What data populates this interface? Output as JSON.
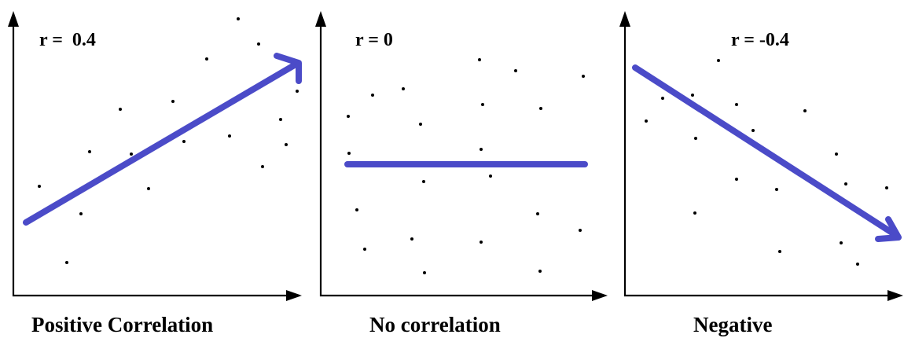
{
  "chart_data": [
    {
      "type": "scatter",
      "correlation_label": "r =  0.4",
      "caption": "Positive Correlation",
      "trend": "increasing",
      "grid": false,
      "colors": {
        "points": "#000000",
        "trend_line": "#4b4bc8",
        "axes": "#000000"
      },
      "points": [
        [
          50,
          237
        ],
        [
          85,
          334
        ],
        [
          103,
          272
        ],
        [
          114,
          193
        ],
        [
          153,
          139
        ],
        [
          167,
          196
        ],
        [
          189,
          240
        ],
        [
          220,
          129
        ],
        [
          234,
          180
        ],
        [
          263,
          75
        ],
        [
          292,
          173
        ],
        [
          303,
          24
        ],
        [
          329,
          56
        ],
        [
          334,
          212
        ],
        [
          357,
          152
        ],
        [
          364,
          184
        ],
        [
          378,
          116
        ]
      ]
    },
    {
      "type": "scatter",
      "correlation_label": "r = 0",
      "caption": "No correlation",
      "trend": "flat",
      "grid": false,
      "colors": {
        "points": "#000000",
        "trend_line": "#4b4bc8",
        "axes": "#000000"
      },
      "points": [
        [
          443,
          148
        ],
        [
          444,
          195
        ],
        [
          454,
          267
        ],
        [
          464,
          317
        ],
        [
          474,
          121
        ],
        [
          513,
          113
        ],
        [
          524,
          304
        ],
        [
          535,
          158
        ],
        [
          539,
          231
        ],
        [
          540,
          347
        ],
        [
          610,
          76
        ],
        [
          612,
          190
        ],
        [
          614,
          133
        ],
        [
          612,
          308
        ],
        [
          624,
          224
        ],
        [
          656,
          90
        ],
        [
          684,
          272
        ],
        [
          688,
          138
        ],
        [
          687,
          345
        ],
        [
          738,
          293
        ],
        [
          742,
          97
        ]
      ]
    },
    {
      "type": "scatter",
      "correlation_label": "r = -0.4",
      "caption": "Negative",
      "trend": "decreasing",
      "grid": false,
      "colors": {
        "points": "#000000",
        "trend_line": "#4b4bc8",
        "axes": "#000000"
      },
      "points": [
        [
          822,
          154
        ],
        [
          843,
          125
        ],
        [
          881,
          121
        ],
        [
          885,
          176
        ],
        [
          884,
          271
        ],
        [
          914,
          77
        ],
        [
          937,
          133
        ],
        [
          937,
          228
        ],
        [
          958,
          166
        ],
        [
          988,
          241
        ],
        [
          992,
          320
        ],
        [
          1024,
          141
        ],
        [
          1064,
          196
        ],
        [
          1070,
          309
        ],
        [
          1076,
          234
        ],
        [
          1091,
          336
        ],
        [
          1128,
          239
        ]
      ]
    }
  ]
}
